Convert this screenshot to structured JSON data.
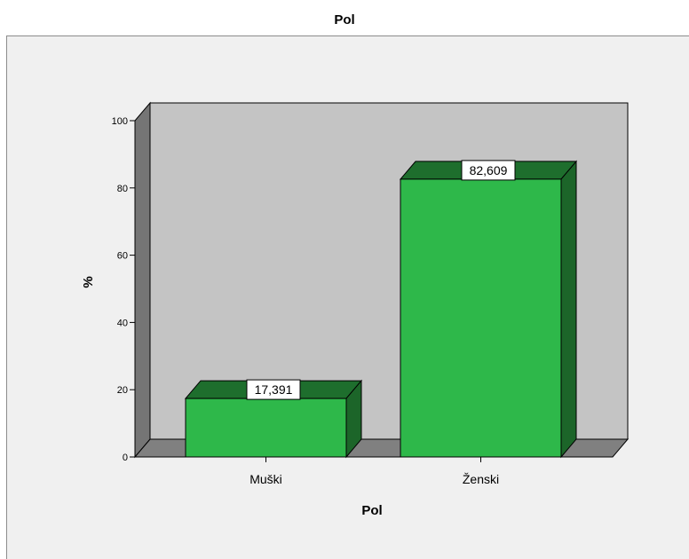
{
  "chart_data": {
    "type": "bar",
    "title": "Pol",
    "xlabel": "Pol",
    "ylabel": "%",
    "categories": [
      "Muški",
      "Ženski"
    ],
    "values": [
      17.391,
      82.609
    ],
    "data_labels": [
      "17,391",
      "82,609"
    ],
    "yticks": [
      0,
      20,
      40,
      60,
      80,
      100
    ],
    "ylim": [
      0,
      100
    ],
    "grid": false,
    "legend": "none",
    "three_d": true,
    "colors": {
      "bar_front": "#2eb84a",
      "bar_top": "#1e6e2d",
      "bar_side": "#1c6529",
      "wall": "#c4c4c4",
      "left_wall": "#757575",
      "floor": "#808080",
      "frame_bg": "#f0f0f0"
    }
  }
}
